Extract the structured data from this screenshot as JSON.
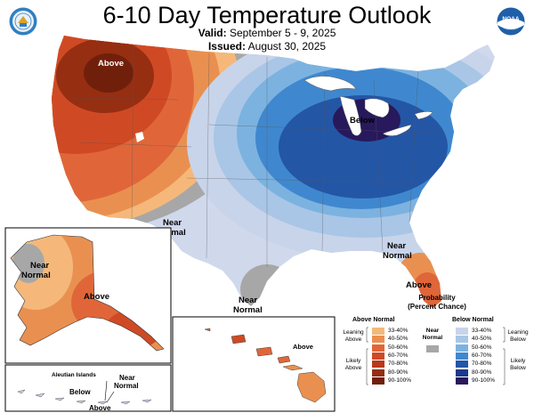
{
  "header": {
    "title": "6-10 Day Temperature Outlook",
    "valid_label": "Valid:",
    "valid_value": "September 5 - 9, 2025",
    "issued_label": "Issued:",
    "issued_value": "August 30, 2025"
  },
  "logos": {
    "left": "commerce-seal-icon",
    "right": "noaa-logo-icon",
    "right_text": "NOAA"
  },
  "map_labels": {
    "conus_above": "Above",
    "conus_below": "Below",
    "near_normal_west_1": "Near",
    "near_normal_west_2": "Normal",
    "near_normal_se_1": "Near",
    "near_normal_se_2": "Normal",
    "near_normal_south_1": "Near",
    "near_normal_south_2": "Normal",
    "florida_above": "Above",
    "alaska_near_1": "Near",
    "alaska_near_2": "Normal",
    "alaska_above": "Above",
    "aleutian_title": "Aleutian Islands",
    "aleutian_below": "Below",
    "aleutian_near_1": "Near",
    "aleutian_near_2": "Normal",
    "aleutian_above": "Above",
    "hawaii_above": "Above"
  },
  "legend": {
    "title_1": "Probability",
    "title_2": "(Percent Chance)",
    "above_header": "Above Normal",
    "below_header": "Below Normal",
    "near_label_1": "Near",
    "near_label_2": "Normal",
    "leaning_above_1": "Leaning",
    "leaning_above_2": "Above",
    "likely_above_1": "Likely",
    "likely_above_2": "Above",
    "leaning_below_1": "Leaning",
    "leaning_below_2": "Below",
    "likely_below_1": "Likely",
    "likely_below_2": "Below",
    "above_bins": [
      "33-40%",
      "40-50%",
      "50-60%",
      "60-70%",
      "70-80%",
      "80-90%",
      "90-100%"
    ],
    "below_bins": [
      "33-40%",
      "40-50%",
      "50-60%",
      "60-70%",
      "70-80%",
      "80-90%",
      "90-100%"
    ],
    "above_colors": [
      "#f5b87a",
      "#e99050",
      "#e0663a",
      "#cf4a24",
      "#b8391a",
      "#962e12",
      "#70200a"
    ],
    "below_colors": [
      "#c8d4ea",
      "#a9c6e6",
      "#7cb2e0",
      "#3f88cf",
      "#2456a6",
      "#1b3a8b",
      "#28195c"
    ],
    "near_color": "#a7a7a7"
  }
}
